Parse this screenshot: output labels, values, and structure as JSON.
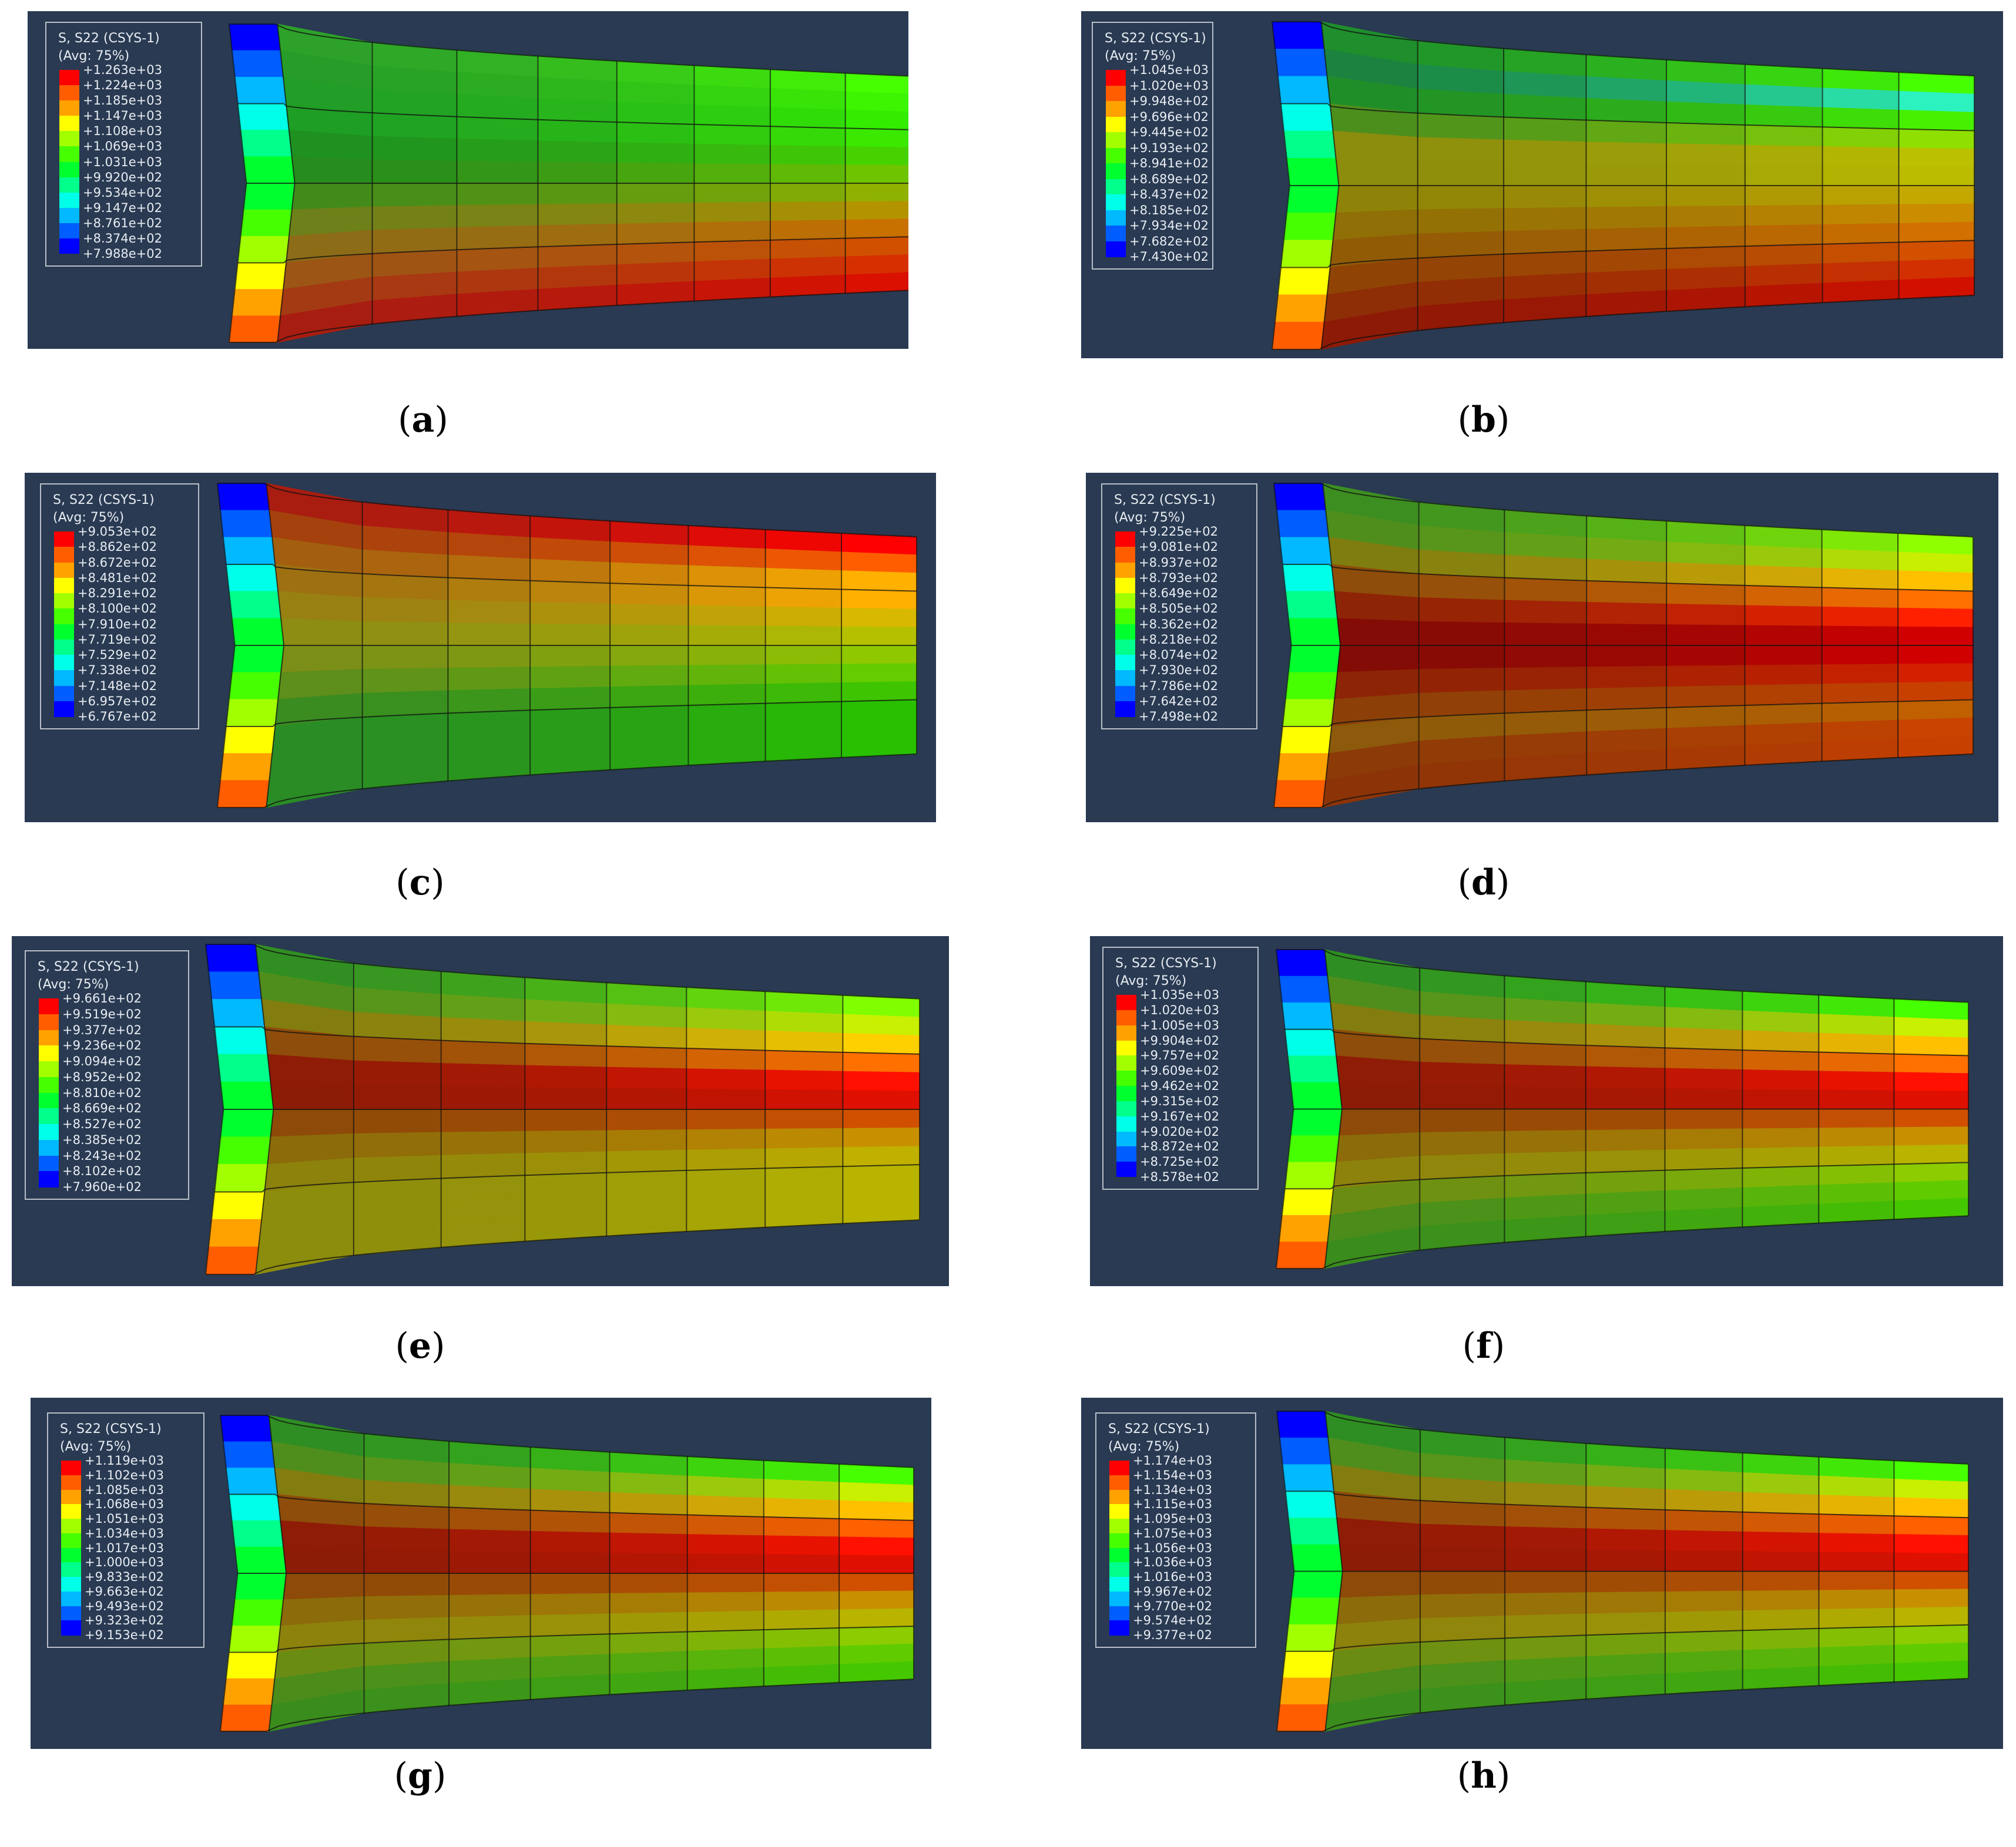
{
  "palette": [
    "#0000ff",
    "#005dff",
    "#00b9ff",
    "#00ffe8",
    "#00ff8b",
    "#00ff2e",
    "#46ff00",
    "#a2ff00",
    "#ffff00",
    "#ffa200",
    "#ff5d00",
    "#ff0000"
  ],
  "colors": {
    "background": "#293a52",
    "legend_border": "#b9bfc8",
    "legend_text": "#e8ecf2",
    "mesh_line": "#101010"
  },
  "figures": [
    {
      "id": "a",
      "caption": "a",
      "legend_title": "S, S22 (CSYS-1)",
      "legend_avg": "(Avg: 75%)",
      "labels": [
        "+1.263e+03",
        "+1.224e+03",
        "+1.185e+03",
        "+1.147e+03",
        "+1.108e+03",
        "+1.069e+03",
        "+1.031e+03",
        "+9.920e+02",
        "+9.534e+02",
        "+9.147e+02",
        "+8.761e+02",
        "+8.374e+02",
        "+7.988e+02"
      ],
      "rows": [
        "#2c9d2c",
        "#26992a",
        "#219a28",
        "#1e9b26",
        "#1d8f22",
        "#238a1e",
        "#3f8a1c",
        "#6b7f1a",
        "#8a6c18",
        "#9a5516",
        "#a23a14",
        "#a61e12"
      ],
      "rows_end": [
        "#46ff00",
        "#3cf500",
        "#33ec00",
        "#3ae800",
        "#46d200",
        "#6fc400",
        "#8fb200",
        "#b39400",
        "#c87000",
        "#d05000",
        "#d63000",
        "#da1000"
      ]
    },
    {
      "id": "b",
      "caption": "b",
      "legend_title": "S, S22 (CSYS-1)",
      "legend_avg": "(Avg: 75%)",
      "labels": [
        "+1.045e+03",
        "+1.020e+03",
        "+9.948e+02",
        "+9.696e+02",
        "+9.445e+02",
        "+9.193e+02",
        "+8.941e+02",
        "+8.689e+02",
        "+8.437e+02",
        "+8.185e+02",
        "+7.934e+02",
        "+7.682e+02",
        "+7.430e+02"
      ],
      "rows": [
        "#1e8a2e",
        "#1a7f3a",
        "#1f8a2a",
        "#4a8c1e",
        "#8a8a0e",
        "#8a8a0e",
        "#8c8208",
        "#8d6e06",
        "#8f5a06",
        "#8c4406",
        "#8a2e06",
        "#8a1a06"
      ],
      "rows_end": [
        "#46ff00",
        "#2cf2c0",
        "#46f000",
        "#8fe000",
        "#bbc000",
        "#bbbb00",
        "#c4a800",
        "#cc8c00",
        "#d27000",
        "#d25000",
        "#d23000",
        "#d21000"
      ]
    },
    {
      "id": "c",
      "caption": "c",
      "legend_title": "S, S22 (CSYS-1)",
      "legend_avg": "(Avg: 75%)",
      "labels": [
        "+9.053e+02",
        "+8.862e+02",
        "+8.672e+02",
        "+8.481e+02",
        "+8.291e+02",
        "+8.100e+02",
        "+7.910e+02",
        "+7.719e+02",
        "+7.529e+02",
        "+7.338e+02",
        "+7.148e+02",
        "+6.957e+02",
        "+6.767e+02"
      ],
      "rows": [
        "#a61e12",
        "#a2400e",
        "#a05c10",
        "#9a6e12",
        "#967e14",
        "#8c8a14",
        "#7a8c18",
        "#5e8c1c",
        "#3a8a22",
        "#2a8a26",
        "#2a8a26",
        "#2a8a26"
      ],
      "rows_end": [
        "#ff0000",
        "#ff5d00",
        "#ffb000",
        "#ffb000",
        "#d8b800",
        "#b4c000",
        "#90c800",
        "#64cc00",
        "#3ec400",
        "#28c000",
        "#28c000",
        "#28c000"
      ]
    },
    {
      "id": "d",
      "caption": "d",
      "legend_title": "S, S22 (CSYS-1)",
      "legend_avg": "(Avg: 75%)",
      "labels": [
        "+9.225e+02",
        "+9.081e+02",
        "+8.937e+02",
        "+8.793e+02",
        "+8.649e+02",
        "+8.505e+02",
        "+8.362e+02",
        "+8.218e+02",
        "+8.074e+02",
        "+7.930e+02",
        "+7.786e+02",
        "+7.642e+02",
        "+7.498e+02"
      ],
      "rows": [
        "#3a8a22",
        "#4a8a1e",
        "#7a7a10",
        "#8a4c0a",
        "#8a2406",
        "#800c06",
        "#800c06",
        "#8a2406",
        "#8a4008",
        "#8a5a0a",
        "#8a3a08",
        "#8a3408"
      ],
      "rows_end": [
        "#8fff00",
        "#c8ee00",
        "#ffc000",
        "#ff7000",
        "#ff2000",
        "#d00000",
        "#d00000",
        "#d22000",
        "#c84000",
        "#c06000",
        "#c84400",
        "#c84000"
      ]
    },
    {
      "id": "e",
      "caption": "e",
      "legend_title": "S, S22 (CSYS-1)",
      "legend_avg": "(Avg: 75%)",
      "labels": [
        "+9.661e+02",
        "+9.519e+02",
        "+9.377e+02",
        "+9.236e+02",
        "+9.094e+02",
        "+8.952e+02",
        "+8.810e+02",
        "+8.669e+02",
        "+8.527e+02",
        "+8.385e+02",
        "+8.243e+02",
        "+8.102e+02",
        "+7.960e+02"
      ],
      "rows": [
        "#2e8a24",
        "#4a8a1e",
        "#7e7a10",
        "#8a4c0a",
        "#8a1c06",
        "#8a1c06",
        "#8a4a08",
        "#8a6a0a",
        "#8a800c",
        "#8a8a0e",
        "#8a8a0e",
        "#8a8a0e"
      ],
      "rows_end": [
        "#80ff00",
        "#c8f000",
        "#ffd000",
        "#ff7000",
        "#ff1000",
        "#e01000",
        "#d05000",
        "#c89000",
        "#c0b000",
        "#b8b400",
        "#b8b400",
        "#b8b400"
      ]
    },
    {
      "id": "f",
      "caption": "f",
      "legend_title": "S, S22 (CSYS-1)",
      "legend_avg": "(Avg: 75%)",
      "labels": [
        "+1.035e+03",
        "+1.020e+03",
        "+1.005e+03",
        "+9.904e+02",
        "+9.757e+02",
        "+9.609e+02",
        "+9.462e+02",
        "+9.315e+02",
        "+9.167e+02",
        "+9.020e+02",
        "+8.872e+02",
        "+8.725e+02",
        "+8.578e+02"
      ],
      "rows": [
        "#2e8a24",
        "#4a8a1e",
        "#7e7a10",
        "#8a4c0a",
        "#8a1c06",
        "#8a1c06",
        "#8a4a08",
        "#8a6a0a",
        "#8a800c",
        "#6a8a14",
        "#4a8a1c",
        "#3a8a1e"
      ],
      "rows_end": [
        "#46ff00",
        "#c8f000",
        "#ffc000",
        "#ff7000",
        "#ff1000",
        "#e01000",
        "#d05000",
        "#c89000",
        "#b8b400",
        "#8ccc00",
        "#60cc00",
        "#46c800"
      ]
    },
    {
      "id": "g",
      "caption": "g",
      "legend_title": "S, S22 (CSYS-1)",
      "legend_avg": "(Avg: 75%)",
      "labels": [
        "+1.119e+03",
        "+1.102e+03",
        "+1.085e+03",
        "+1.068e+03",
        "+1.051e+03",
        "+1.034e+03",
        "+1.017e+03",
        "+1.000e+03",
        "+9.833e+02",
        "+9.663e+02",
        "+9.493e+02",
        "+9.323e+02",
        "+9.153e+02"
      ],
      "rows": [
        "#2e8a24",
        "#4a8a1e",
        "#7e7a10",
        "#8a4c0a",
        "#8a1c06",
        "#8a1c06",
        "#8a4a08",
        "#8a6a0a",
        "#8a800c",
        "#6a8a14",
        "#4a8a1c",
        "#3a8a1e"
      ],
      "rows_end": [
        "#46ff00",
        "#c8f000",
        "#ffc000",
        "#ff6000",
        "#ff1000",
        "#e01000",
        "#d05000",
        "#c89000",
        "#b8b400",
        "#8ccc00",
        "#60cc00",
        "#46c800"
      ]
    },
    {
      "id": "h",
      "caption": "h",
      "legend_title": "S, S22 (CSYS-1)",
      "legend_avg": "(Avg: 75%)",
      "labels": [
        "+1.174e+03",
        "+1.154e+03",
        "+1.134e+03",
        "+1.115e+03",
        "+1.095e+03",
        "+1.075e+03",
        "+1.056e+03",
        "+1.036e+03",
        "+1.016e+03",
        "+9.967e+02",
        "+9.770e+02",
        "+9.574e+02",
        "+9.377e+02"
      ],
      "rows": [
        "#2e8a24",
        "#4a8a1e",
        "#7e7a10",
        "#8a4c0a",
        "#8a1c06",
        "#8a1c06",
        "#8a4a08",
        "#8a6a0a",
        "#8a800c",
        "#6a8a14",
        "#4a8a1c",
        "#3a8a1e"
      ],
      "rows_end": [
        "#46ff00",
        "#c8f000",
        "#ffc000",
        "#ff6000",
        "#ff1000",
        "#e01000",
        "#d05000",
        "#c89000",
        "#b8b400",
        "#8ccc00",
        "#60cc00",
        "#46c800"
      ]
    }
  ]
}
